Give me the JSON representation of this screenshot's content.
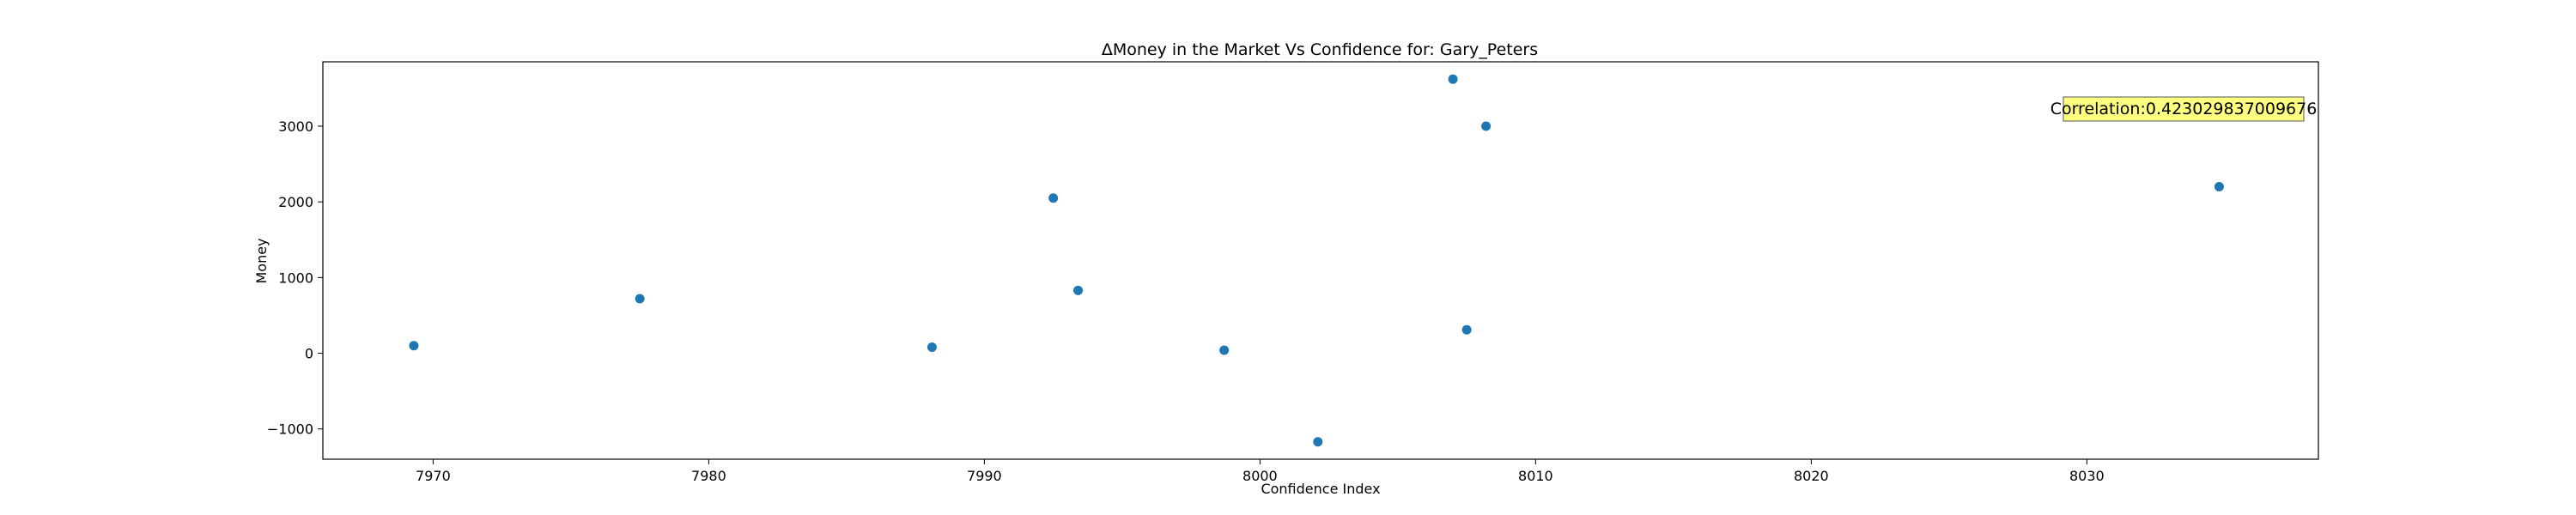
{
  "chart_data": {
    "type": "scatter",
    "title": "ΔMoney in the Market Vs Confidence for: Gary_Peters",
    "xlabel": "Confidence Index",
    "ylabel": "Money",
    "xlim": [
      7966,
      8038.4
    ],
    "ylim": [
      -1400,
      3850
    ],
    "xticks": [
      7970,
      7980,
      7990,
      8000,
      8010,
      8020,
      8030
    ],
    "yticks": [
      -1000,
      0,
      1000,
      2000,
      3000
    ],
    "grid": false,
    "marker_color": "#1f77b4",
    "annotation": {
      "text": "Correlation:0.423029837009676",
      "placement": "top-right",
      "background": "#ffff80"
    },
    "points": [
      {
        "x": 7969.3,
        "y": 100
      },
      {
        "x": 7977.5,
        "y": 720
      },
      {
        "x": 7988.1,
        "y": 80
      },
      {
        "x": 7992.5,
        "y": 2050
      },
      {
        "x": 7993.4,
        "y": 830
      },
      {
        "x": 7998.7,
        "y": 40
      },
      {
        "x": 8002.1,
        "y": -1170
      },
      {
        "x": 8007.0,
        "y": 3620
      },
      {
        "x": 8007.5,
        "y": 310
      },
      {
        "x": 8008.2,
        "y": 3000
      },
      {
        "x": 8034.8,
        "y": 2200
      }
    ]
  }
}
